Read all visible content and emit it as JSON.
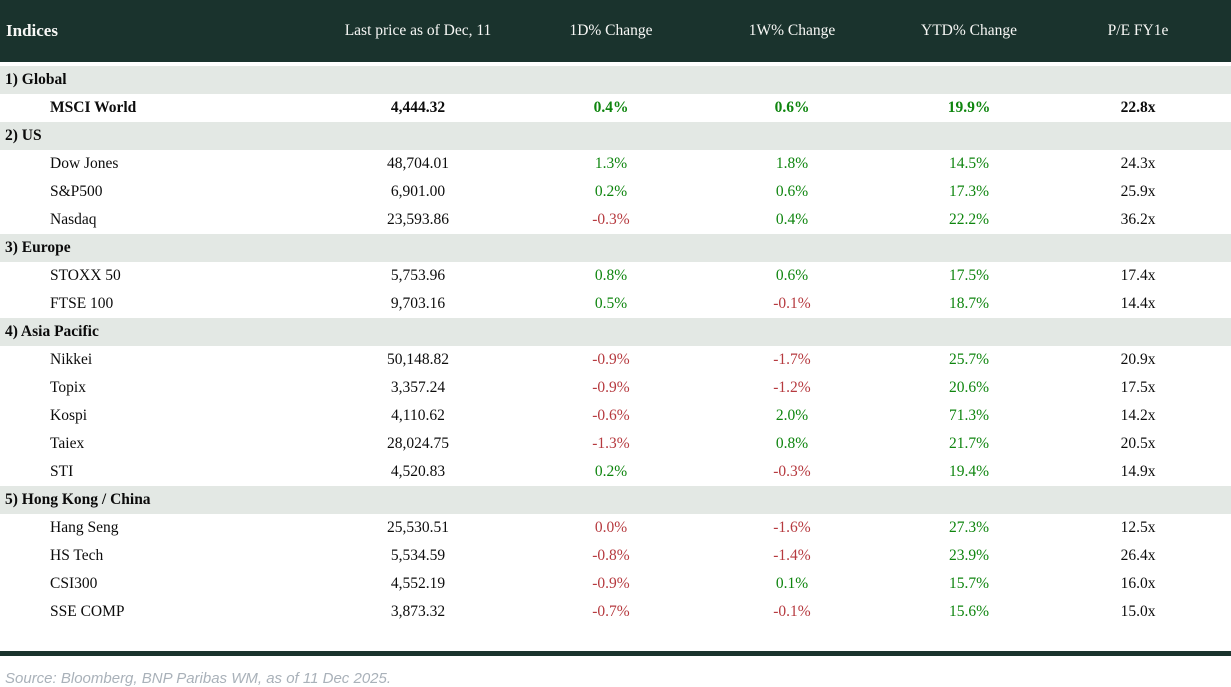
{
  "chart_data": {
    "type": "table",
    "title": "Indices",
    "columns": [
      "Indices",
      "Last price as of Dec, 11",
      "1D% Change",
      "1W% Change",
      "YTD% Change",
      "P/E FY1e"
    ],
    "sections": [
      {
        "label": "1) Global",
        "rows": [
          {
            "name": "MSCI World",
            "bold": true,
            "cells": [
              {
                "v": "4,444.32",
                "c": "plain"
              },
              {
                "v": "0.4%",
                "c": "pos"
              },
              {
                "v": "0.6%",
                "c": "pos"
              },
              {
                "v": "19.9%",
                "c": "pos"
              },
              {
                "v": "22.8x",
                "c": "plain"
              }
            ]
          }
        ]
      },
      {
        "label": "2) US",
        "rows": [
          {
            "name": "Dow Jones",
            "bold": false,
            "cells": [
              {
                "v": "48,704.01",
                "c": "plain"
              },
              {
                "v": "1.3%",
                "c": "pos"
              },
              {
                "v": "1.8%",
                "c": "pos"
              },
              {
                "v": "14.5%",
                "c": "pos"
              },
              {
                "v": "24.3x",
                "c": "plain"
              }
            ]
          },
          {
            "name": "S&P500",
            "bold": false,
            "cells": [
              {
                "v": "6,901.00",
                "c": "plain"
              },
              {
                "v": "0.2%",
                "c": "pos"
              },
              {
                "v": "0.6%",
                "c": "pos"
              },
              {
                "v": "17.3%",
                "c": "pos"
              },
              {
                "v": "25.9x",
                "c": "plain"
              }
            ]
          },
          {
            "name": "Nasdaq",
            "bold": false,
            "cells": [
              {
                "v": "23,593.86",
                "c": "plain"
              },
              {
                "v": "-0.3%",
                "c": "neg"
              },
              {
                "v": "0.4%",
                "c": "pos"
              },
              {
                "v": "22.2%",
                "c": "pos"
              },
              {
                "v": "36.2x",
                "c": "plain"
              }
            ]
          }
        ]
      },
      {
        "label": "3) Europe",
        "rows": [
          {
            "name": "STOXX 50",
            "bold": false,
            "cells": [
              {
                "v": "5,753.96",
                "c": "plain"
              },
              {
                "v": "0.8%",
                "c": "pos"
              },
              {
                "v": "0.6%",
                "c": "pos"
              },
              {
                "v": "17.5%",
                "c": "pos"
              },
              {
                "v": "17.4x",
                "c": "plain"
              }
            ]
          },
          {
            "name": "FTSE 100",
            "bold": false,
            "cells": [
              {
                "v": "9,703.16",
                "c": "plain"
              },
              {
                "v": "0.5%",
                "c": "pos"
              },
              {
                "v": "-0.1%",
                "c": "neg"
              },
              {
                "v": "18.7%",
                "c": "pos"
              },
              {
                "v": "14.4x",
                "c": "plain"
              }
            ]
          }
        ]
      },
      {
        "label": "4) Asia Pacific",
        "rows": [
          {
            "name": "Nikkei",
            "bold": false,
            "cells": [
              {
                "v": "50,148.82",
                "c": "plain"
              },
              {
                "v": "-0.9%",
                "c": "neg"
              },
              {
                "v": "-1.7%",
                "c": "neg"
              },
              {
                "v": "25.7%",
                "c": "pos"
              },
              {
                "v": "20.9x",
                "c": "plain"
              }
            ]
          },
          {
            "name": "Topix",
            "bold": false,
            "cells": [
              {
                "v": "3,357.24",
                "c": "plain"
              },
              {
                "v": "-0.9%",
                "c": "neg"
              },
              {
                "v": "-1.2%",
                "c": "neg"
              },
              {
                "v": "20.6%",
                "c": "pos"
              },
              {
                "v": "17.5x",
                "c": "plain"
              }
            ]
          },
          {
            "name": "Kospi",
            "bold": false,
            "cells": [
              {
                "v": "4,110.62",
                "c": "plain"
              },
              {
                "v": "-0.6%",
                "c": "neg"
              },
              {
                "v": "2.0%",
                "c": "pos"
              },
              {
                "v": "71.3%",
                "c": "pos"
              },
              {
                "v": "14.2x",
                "c": "plain"
              }
            ]
          },
          {
            "name": "Taiex",
            "bold": false,
            "cells": [
              {
                "v": "28,024.75",
                "c": "plain"
              },
              {
                "v": "-1.3%",
                "c": "neg"
              },
              {
                "v": "0.8%",
                "c": "pos"
              },
              {
                "v": "21.7%",
                "c": "pos"
              },
              {
                "v": "20.5x",
                "c": "plain"
              }
            ]
          },
          {
            "name": "STI",
            "bold": false,
            "cells": [
              {
                "v": "4,520.83",
                "c": "plain"
              },
              {
                "v": "0.2%",
                "c": "pos"
              },
              {
                "v": "-0.3%",
                "c": "neg"
              },
              {
                "v": "19.4%",
                "c": "pos"
              },
              {
                "v": "14.9x",
                "c": "plain"
              }
            ]
          }
        ]
      },
      {
        "label": "5) Hong Kong / China",
        "rows": [
          {
            "name": "Hang Seng",
            "bold": false,
            "cells": [
              {
                "v": "25,530.51",
                "c": "plain"
              },
              {
                "v": "0.0%",
                "c": "neg"
              },
              {
                "v": "-1.6%",
                "c": "neg"
              },
              {
                "v": "27.3%",
                "c": "pos"
              },
              {
                "v": "12.5x",
                "c": "plain"
              }
            ]
          },
          {
            "name": "HS Tech",
            "bold": false,
            "cells": [
              {
                "v": "5,534.59",
                "c": "plain"
              },
              {
                "v": "-0.8%",
                "c": "neg"
              },
              {
                "v": "-1.4%",
                "c": "neg"
              },
              {
                "v": "23.9%",
                "c": "pos"
              },
              {
                "v": "26.4x",
                "c": "plain"
              }
            ]
          },
          {
            "name": "CSI300",
            "bold": false,
            "cells": [
              {
                "v": "4,552.19",
                "c": "plain"
              },
              {
                "v": "-0.9%",
                "c": "neg"
              },
              {
                "v": "0.1%",
                "c": "pos"
              },
              {
                "v": "15.7%",
                "c": "pos"
              },
              {
                "v": "16.0x",
                "c": "plain"
              }
            ]
          },
          {
            "name": "SSE COMP",
            "bold": false,
            "cells": [
              {
                "v": "3,873.32",
                "c": "plain"
              },
              {
                "v": "-0.7%",
                "c": "neg"
              },
              {
                "v": "-0.1%",
                "c": "neg"
              },
              {
                "v": "15.6%",
                "c": "pos"
              },
              {
                "v": "15.0x",
                "c": "plain"
              }
            ]
          }
        ]
      }
    ],
    "legend": {
      "positive_color_meaning": "positive change",
      "negative_color_meaning": "negative change"
    }
  },
  "footer": {
    "source": "Source: Bloomberg, BNP Paribas WM, as of 11 Dec 2025."
  },
  "colors": {
    "header_bg": "#1a332d",
    "band_bg": "#e3e8e4",
    "positive": "#0e850e",
    "negative": "#b63a3f",
    "source_text": "#a9b1b9"
  }
}
